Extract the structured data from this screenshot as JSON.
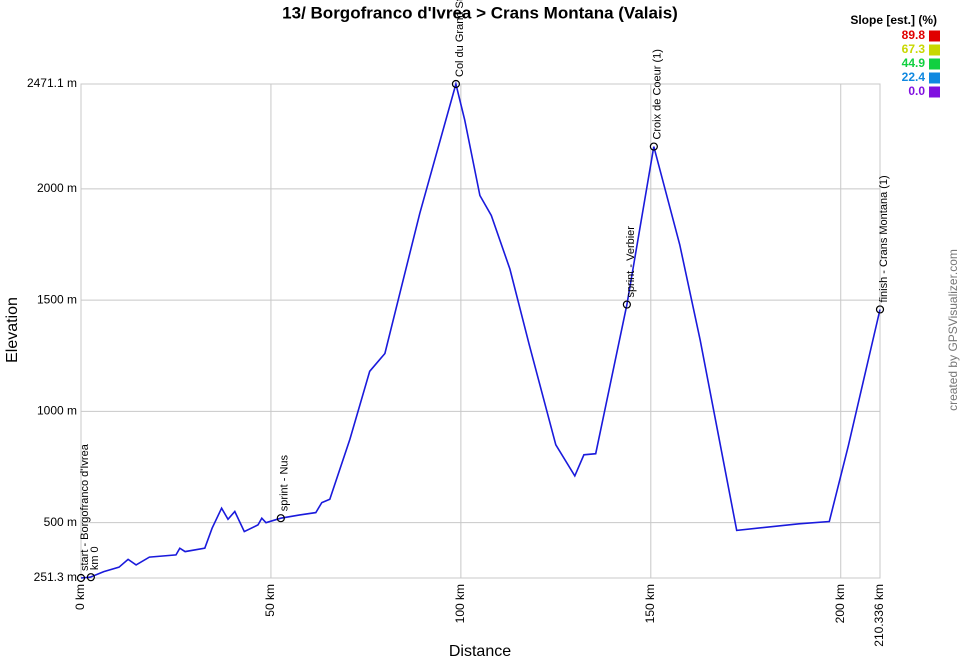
{
  "chart_data": {
    "type": "line",
    "title": "13/ Borgofranco d'Ivrea > Crans Montana (Valais)",
    "x_label": "Distance",
    "y_label": "Elevation",
    "credit": "created by GPSVisualizer.com",
    "xlim": [
      0,
      210.336
    ],
    "ylim": [
      251.3,
      2471.1
    ],
    "xticks": [
      {
        "value": 0,
        "label": "0 km"
      },
      {
        "value": 50,
        "label": "50 km"
      },
      {
        "value": 100,
        "label": "100 km"
      },
      {
        "value": 150,
        "label": "150 km"
      },
      {
        "value": 200,
        "label": "200 km"
      },
      {
        "value": 210.336,
        "label": "210.336 km"
      }
    ],
    "yticks": [
      {
        "value": 251.3,
        "label": "251.3 m"
      },
      {
        "value": 500,
        "label": "500 m"
      },
      {
        "value": 1000,
        "label": "1000 m"
      },
      {
        "value": 1500,
        "label": "1500 m"
      },
      {
        "value": 2000,
        "label": "2000 m"
      },
      {
        "value": 2471.1,
        "label": "2471.1 m"
      }
    ],
    "grid": true,
    "x": [
      0,
      2.4,
      6,
      10,
      12.4,
      14.5,
      18,
      25,
      26,
      27.4,
      32.6,
      34.5,
      37,
      38.7,
      40.5,
      43,
      46.6,
      47.6,
      48.7,
      52.6,
      57.6,
      61.8,
      63.4,
      65.5,
      70.8,
      76,
      80,
      84,
      89.2,
      98.7,
      101,
      105,
      108,
      112.9,
      118,
      125,
      130,
      132.4,
      135.5,
      143.7,
      150.8,
      157.6,
      163,
      168,
      172.6,
      189,
      197,
      202,
      210.336
    ],
    "series": [
      {
        "color": "#1a1adc",
        "values": [
          251.3,
          255,
          280,
          300,
          335,
          310,
          345,
          355,
          385,
          370,
          385,
          475,
          565,
          515,
          550,
          460,
          490,
          520,
          500,
          520,
          535,
          545,
          590,
          605,
          875,
          1180,
          1260,
          1535,
          1890,
          2471.1,
          2310,
          1970,
          1880,
          1640,
          1300,
          850,
          710,
          805,
          810,
          1480,
          2190,
          1750,
          1320,
          875,
          465,
          495,
          505,
          845,
          1458
        ]
      }
    ],
    "waypoints": [
      {
        "label": "start - Borgofranco d'Ivrea",
        "x": 0,
        "y": 251.3
      },
      {
        "label": "km 0",
        "x": 2.6,
        "y": 255
      },
      {
        "label": "sprint - Nus",
        "x": 52.6,
        "y": 520
      },
      {
        "label": "Col du Grand St-Bernard",
        "x": 98.7,
        "y": 2471.1
      },
      {
        "label": "sprint - Verbier",
        "x": 143.7,
        "y": 1480
      },
      {
        "label": "Croix de Coeur (1)",
        "x": 150.8,
        "y": 2190
      },
      {
        "label": "finish - Crans Montana (1)",
        "x": 210.336,
        "y": 1458
      }
    ],
    "legend": {
      "title": "Slope [est.] (%)",
      "items": [
        {
          "label": "89.8",
          "color": "#e00000"
        },
        {
          "label": "67.3",
          "color": "#c8d800"
        },
        {
          "label": "44.9",
          "color": "#10d040"
        },
        {
          "label": "22.4",
          "color": "#1088e0"
        },
        {
          "label": "0.0",
          "color": "#8010e0"
        }
      ]
    }
  }
}
